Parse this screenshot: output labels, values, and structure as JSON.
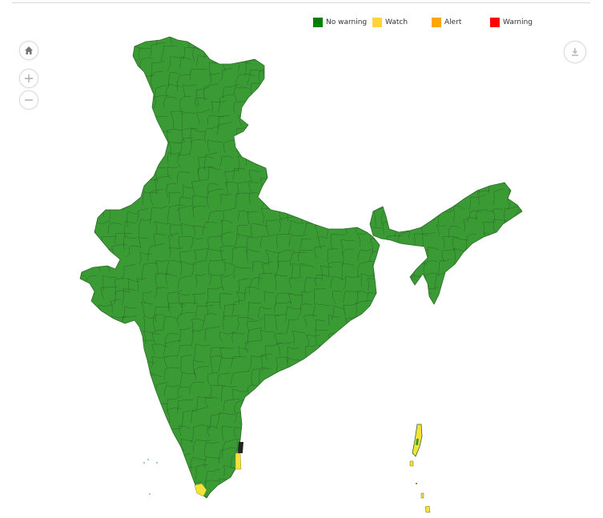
{
  "legend": {
    "items": [
      {
        "label": "No warning",
        "color": "#008000"
      },
      {
        "label": "Watch",
        "color": "#FFD33D"
      },
      {
        "label": "Alert",
        "color": "#FFA500"
      },
      {
        "label": "Warning",
        "color": "#FF0000"
      }
    ]
  },
  "map": {
    "land_color": "#3a9b35",
    "district_line_color": "#2a5a24",
    "watch_color": "#f2e23a",
    "controls": [
      "home-icon",
      "zoom-in-icon",
      "zoom-out-icon",
      "download-icon"
    ]
  }
}
